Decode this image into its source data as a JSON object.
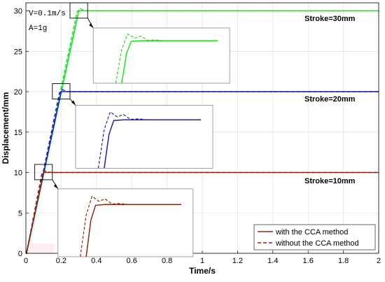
{
  "chart_data": {
    "type": "line",
    "xlabel": "Time/s",
    "ylabel": "Displacement/mm",
    "xlim": [
      0,
      2
    ],
    "ylim": [
      0,
      31
    ],
    "xticks": [
      "0",
      "0.2",
      "0.4",
      "0.6",
      "0.8",
      "1",
      "1.2",
      "1.4",
      "1.6",
      "1.8",
      "2"
    ],
    "yticks": [
      "0",
      "5",
      "10",
      "15",
      "20",
      "25",
      "30"
    ],
    "grid": true,
    "params": [
      "V=0.1m/s",
      "A=1g"
    ],
    "strokes": [
      {
        "label": "Stroke=30mm",
        "final": 30,
        "rise_end": 0.3,
        "overshoot": 30.3,
        "color": "#22dd22",
        "inset": "inset-30mm"
      },
      {
        "label": "Stroke=20mm",
        "final": 20,
        "rise_end": 0.2,
        "overshoot": 20.25,
        "color": "#1f1fb0",
        "inset": "inset-20mm"
      },
      {
        "label": "Stroke=10mm",
        "final": 10,
        "rise_end": 0.1,
        "overshoot": 10.2,
        "color": "#8b2a12",
        "inset": "inset-10mm"
      }
    ],
    "legend": {
      "position": "bottom-right",
      "entries": [
        {
          "label": "with the CCA method",
          "style": "solid"
        },
        {
          "label": "without the CCA method",
          "style": "dashed"
        }
      ]
    }
  }
}
